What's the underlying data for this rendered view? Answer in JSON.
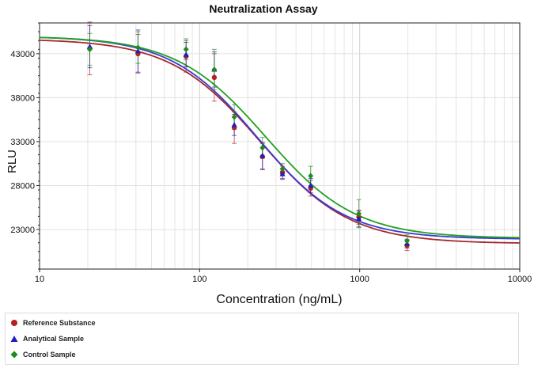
{
  "chart_data": {
    "type": "scatter",
    "title": "Neutralization Assay",
    "xlabel": "Concentration (ng/mL)",
    "ylabel": "RLU",
    "xscale": "log",
    "xlim": [
      10,
      10000
    ],
    "ylim": [
      18500,
      46500
    ],
    "x_ticks": [
      10,
      100,
      1000,
      10000
    ],
    "x_tick_labels": [
      "10",
      "100",
      "1000",
      "10000"
    ],
    "y_ticks": [
      23000,
      28000,
      33000,
      38000,
      43000
    ],
    "y_tick_labels": [
      "23000",
      "28000",
      "33000",
      "38000",
      "43000"
    ],
    "grid": true,
    "legend_position": "bottom",
    "x": [
      20.6,
      41.2,
      82.3,
      123.5,
      164.6,
      246.9,
      329.2,
      493.8,
      987.7,
      1975.3
    ],
    "series": [
      {
        "name": "Reference Substance",
        "color": "#b22222",
        "marker": "circle",
        "values": [
          43600,
          43000,
          42700,
          40300,
          34600,
          31300,
          29500,
          27700,
          24400,
          21200
        ],
        "errors": [
          3000,
          2200,
          1800,
          2700,
          1800,
          1500,
          700,
          900,
          800,
          600
        ],
        "fit": {
          "top": 44700,
          "bottom": 21400,
          "ec50": 238,
          "hill": 1.55
        },
        "curve_color": "#a52a2a"
      },
      {
        "name": "Analytical Sample",
        "color": "#1f1fbf",
        "marker": "triangle",
        "values": [
          43800,
          43300,
          42900,
          41200,
          34900,
          31400,
          29300,
          28000,
          24200,
          21400
        ],
        "errors": [
          2400,
          2400,
          1400,
          2000,
          1200,
          1500,
          600,
          800,
          900,
          500
        ],
        "fit": {
          "top": 45000,
          "bottom": 21900,
          "ec50": 230,
          "hill": 1.6
        },
        "curve_color": "#3b3bd6"
      },
      {
        "name": "Control Sample",
        "color": "#1e8b1e",
        "marker": "diamond",
        "values": [
          43500,
          43700,
          43500,
          41200,
          35800,
          32300,
          29900,
          29100,
          24800,
          21700
        ],
        "errors": [
          1800,
          1800,
          1200,
          2300,
          1400,
          1200,
          600,
          1100,
          1600,
          700
        ],
        "fit": {
          "top": 45000,
          "bottom": 22000,
          "ec50": 260,
          "hill": 1.55
        },
        "curve_color": "#22a022"
      }
    ]
  }
}
